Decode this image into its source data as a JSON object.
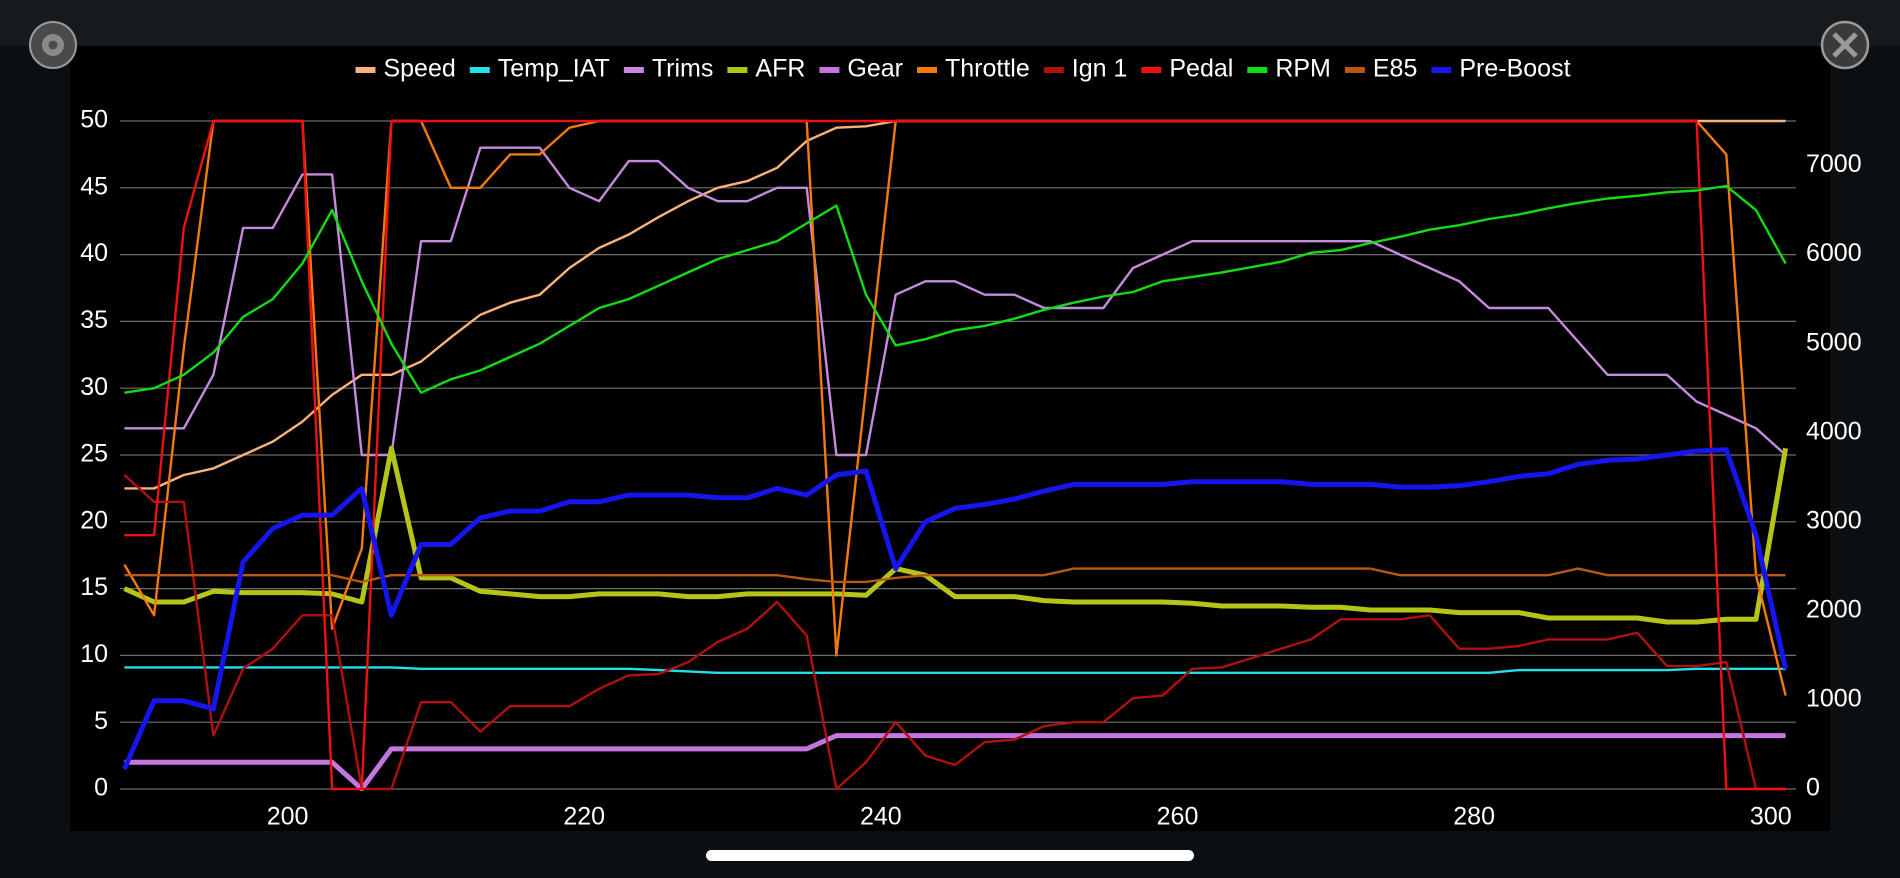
{
  "chart_data": {
    "type": "line",
    "x": [
      189,
      191,
      193,
      195,
      197,
      199,
      201,
      203,
      205,
      207,
      209,
      211,
      213,
      215,
      217,
      219,
      221,
      223,
      225,
      227,
      229,
      231,
      233,
      235,
      237,
      239,
      241,
      243,
      245,
      247,
      249,
      251,
      253,
      255,
      257,
      259,
      261,
      263,
      265,
      267,
      269,
      271,
      273,
      275,
      277,
      279,
      281,
      283,
      285,
      287,
      289,
      291,
      293,
      295,
      297,
      299,
      301
    ],
    "xlim": [
      188.7,
      301.7
    ],
    "xticks": [
      200,
      220,
      240,
      260,
      280,
      300
    ],
    "ylim": [
      0,
      50
    ],
    "yticks": [
      0,
      5,
      10,
      15,
      20,
      25,
      30,
      35,
      40,
      45,
      50
    ],
    "y2lim": [
      0,
      7500
    ],
    "y2ticks": [
      0,
      1000,
      2000,
      3000,
      4000,
      5000,
      6000,
      7000
    ],
    "grid": true,
    "legend": "top",
    "series": [
      {
        "name": "Speed",
        "color": "#f9b27a",
        "values": [
          22.5,
          22.5,
          23.5,
          24,
          25,
          26,
          27.5,
          29.5,
          31,
          31,
          32,
          33.8,
          35.5,
          36.4,
          37,
          39,
          40.5,
          41.5,
          42.8,
          44,
          45,
          45.5,
          46.5,
          48.5,
          49.5,
          49.6,
          50,
          50,
          50,
          50,
          50,
          50,
          50,
          50,
          50,
          50,
          50,
          50,
          50,
          50,
          50,
          50,
          50,
          50,
          50,
          50,
          50,
          50,
          50,
          50,
          50,
          50,
          50,
          50,
          50,
          50,
          50
        ]
      },
      {
        "name": "Temp_IAT",
        "color": "#22e0e8",
        "values": [
          9.1,
          9.1,
          9.1,
          9.1,
          9.1,
          9.1,
          9.1,
          9.1,
          9.1,
          9.1,
          9,
          9,
          9,
          9,
          9,
          9,
          9,
          9,
          8.9,
          8.8,
          8.7,
          8.7,
          8.7,
          8.7,
          8.7,
          8.7,
          8.7,
          8.7,
          8.7,
          8.7,
          8.7,
          8.7,
          8.7,
          8.7,
          8.7,
          8.7,
          8.7,
          8.7,
          8.7,
          8.7,
          8.7,
          8.7,
          8.7,
          8.7,
          8.7,
          8.7,
          8.7,
          8.9,
          8.9,
          8.9,
          8.9,
          8.9,
          8.9,
          9,
          9,
          9,
          9
        ]
      },
      {
        "name": "Trims",
        "color": "#c58ade",
        "values": [
          27,
          27,
          27,
          31,
          42,
          42,
          46,
          46,
          25,
          25,
          41,
          41,
          48,
          48,
          48,
          45,
          44,
          47,
          47,
          45,
          44,
          44,
          45,
          45,
          25,
          25,
          37,
          38,
          38,
          37,
          37,
          36,
          36,
          36,
          39,
          40,
          41,
          41,
          41,
          41,
          41,
          41,
          41,
          40,
          39,
          38,
          36,
          36,
          36,
          33.5,
          31,
          31,
          31,
          29,
          28,
          27,
          25
        ]
      },
      {
        "name": "AFR",
        "color": "#b5c518",
        "values": [
          15,
          14,
          14,
          14.8,
          14.7,
          14.7,
          14.7,
          14.6,
          14,
          25.5,
          15.8,
          15.8,
          14.8,
          14.6,
          14.4,
          14.4,
          14.6,
          14.6,
          14.6,
          14.4,
          14.4,
          14.6,
          14.6,
          14.6,
          14.6,
          14.5,
          16.5,
          16,
          14.4,
          14.4,
          14.4,
          14.1,
          14,
          14,
          14,
          14,
          13.9,
          13.7,
          13.7,
          13.7,
          13.6,
          13.6,
          13.4,
          13.4,
          13.4,
          13.2,
          13.2,
          13.2,
          12.8,
          12.8,
          12.8,
          12.8,
          12.5,
          12.5,
          12.7,
          12.7,
          25.5
        ]
      },
      {
        "name": "Gear",
        "color": "#c476e0",
        "values": [
          2,
          2,
          2,
          2,
          2,
          2,
          2,
          2,
          0,
          3,
          3,
          3,
          3,
          3,
          3,
          3,
          3,
          3,
          3,
          3,
          3,
          3,
          3,
          3,
          4,
          4,
          4,
          4,
          4,
          4,
          4,
          4,
          4,
          4,
          4,
          4,
          4,
          4,
          4,
          4,
          4,
          4,
          4,
          4,
          4,
          4,
          4,
          4,
          4,
          4,
          4,
          4,
          4,
          4,
          4,
          4,
          4
        ]
      },
      {
        "name": "Throttle",
        "color": "#f47a10",
        "values": [
          16.8,
          13,
          33,
          50,
          50,
          50,
          50,
          12,
          18,
          50,
          50,
          45,
          45,
          47.5,
          47.5,
          49.5,
          50,
          50,
          50,
          50,
          50,
          50,
          50,
          50,
          10,
          30,
          50,
          50,
          50,
          50,
          50,
          50,
          50,
          50,
          50,
          50,
          50,
          50,
          50,
          50,
          50,
          50,
          50,
          50,
          50,
          50,
          50,
          50,
          50,
          50,
          50,
          50,
          50,
          50,
          47.5,
          16,
          7
        ]
      },
      {
        "name": "Ign 1",
        "color": "#b01010",
        "values": [
          23.5,
          21.5,
          21.5,
          4,
          9,
          10.5,
          13,
          13,
          0,
          0,
          6.5,
          6.5,
          4.3,
          6.2,
          6.2,
          6.2,
          7.5,
          8.5,
          8.6,
          9.5,
          11,
          12,
          14,
          11.5,
          0,
          2,
          5,
          2.5,
          1.8,
          3.5,
          3.7,
          4.7,
          5,
          5,
          6.8,
          7,
          9,
          9.1,
          9.8,
          10.5,
          11.2,
          12.7,
          12.7,
          12.7,
          13,
          10.5,
          10.5,
          10.7,
          11.2,
          11.2,
          11.2,
          11.7,
          9.2,
          9.2,
          9.5,
          0,
          0
        ]
      },
      {
        "name": "Pedal",
        "color": "#ee1111",
        "values": [
          19,
          19,
          42,
          50,
          50,
          50,
          50,
          0,
          0,
          50,
          50,
          50,
          50,
          50,
          50,
          50,
          50,
          50,
          50,
          50,
          50,
          50,
          50,
          50,
          50,
          50,
          50,
          50,
          50,
          50,
          50,
          50,
          50,
          50,
          50,
          50,
          50,
          50,
          50,
          50,
          50,
          50,
          50,
          50,
          50,
          50,
          50,
          50,
          50,
          50,
          50,
          50,
          50,
          50,
          0,
          0,
          0
        ]
      },
      {
        "name": "RPM",
        "color": "#11dd11",
        "axis": "y2",
        "values": [
          4450,
          4500,
          4650,
          4900,
          5300,
          5500,
          5900,
          6500,
          5700,
          5000,
          4450,
          4600,
          4700,
          4850,
          5000,
          5200,
          5400,
          5500,
          5650,
          5800,
          5950,
          6050,
          6150,
          6350,
          6550,
          5550,
          4980,
          5050,
          5150,
          5200,
          5280,
          5380,
          5460,
          5530,
          5580,
          5700,
          5750,
          5800,
          5860,
          5920,
          6020,
          6050,
          6130,
          6200,
          6280,
          6330,
          6400,
          6450,
          6520,
          6580,
          6630,
          6660,
          6700,
          6720,
          6770,
          6500,
          5900
        ]
      },
      {
        "name": "E85",
        "color": "#b85812",
        "values": [
          16,
          16,
          16,
          16,
          16,
          16,
          16,
          16,
          15.5,
          16,
          16,
          16,
          16,
          16,
          16,
          16,
          16,
          16,
          16,
          16,
          16,
          16,
          16,
          15.7,
          15.5,
          15.5,
          15.8,
          16,
          16,
          16,
          16,
          16,
          16.5,
          16.5,
          16.5,
          16.5,
          16.5,
          16.5,
          16.5,
          16.5,
          16.5,
          16.5,
          16.5,
          16,
          16,
          16,
          16,
          16,
          16,
          16.5,
          16,
          16,
          16,
          16,
          16,
          16,
          16
        ]
      },
      {
        "name": "Pre-Boost",
        "color": "#1515ee",
        "values": [
          1.5,
          6.6,
          6.6,
          6,
          17,
          19.5,
          20.5,
          20.5,
          22.5,
          13,
          18.3,
          18.3,
          20.3,
          20.8,
          20.8,
          21.5,
          21.5,
          22,
          22,
          22,
          21.8,
          21.8,
          22.5,
          22,
          23.5,
          23.8,
          16.5,
          20,
          21,
          21.3,
          21.7,
          22.3,
          22.8,
          22.8,
          22.8,
          22.8,
          23,
          23,
          23,
          23,
          22.8,
          22.8,
          22.8,
          22.6,
          22.6,
          22.7,
          23,
          23.4,
          23.6,
          24.3,
          24.6,
          24.7,
          25,
          25.3,
          25.4,
          19,
          9
        ]
      }
    ]
  }
}
